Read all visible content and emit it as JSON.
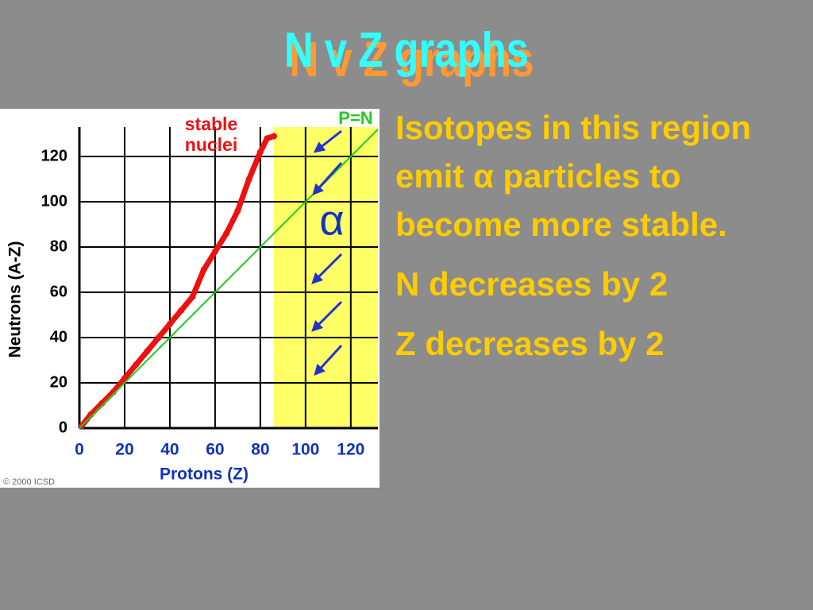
{
  "title": "N v Z graphs",
  "bullets": [
    "Isotopes in this region emit α particles to become more stable.",
    "N decreases by 2",
    "Z decreases by 2"
  ],
  "chart_data": {
    "type": "scatter",
    "xlabel": "Protons  (Z)",
    "ylabel": "Neutrons  (A-Z)",
    "xlim": [
      0,
      132
    ],
    "ylim": [
      0,
      133
    ],
    "xticks": [
      0,
      20,
      40,
      60,
      80,
      100,
      120
    ],
    "yticks": [
      0,
      20,
      40,
      60,
      80,
      100,
      120
    ],
    "grid": true,
    "region": {
      "xmin": 86,
      "color": "#ffff66"
    },
    "series": [
      {
        "name": "stable nuclei",
        "color": "#ee1111",
        "x": [
          1,
          5,
          10,
          15,
          20,
          25,
          30,
          35,
          40,
          45,
          50,
          55,
          60,
          65,
          70,
          75,
          80,
          83,
          86
        ],
        "values": [
          1,
          6,
          11,
          16,
          22,
          28,
          34,
          40,
          46,
          52,
          58,
          70,
          78,
          86,
          96,
          110,
          122,
          128,
          129
        ]
      },
      {
        "name": "P=N",
        "color": "#22cc22",
        "x": [
          0,
          132
        ],
        "values": [
          0,
          132
        ]
      }
    ],
    "annotations": [
      "α",
      "© 2000 ICSD"
    ]
  }
}
